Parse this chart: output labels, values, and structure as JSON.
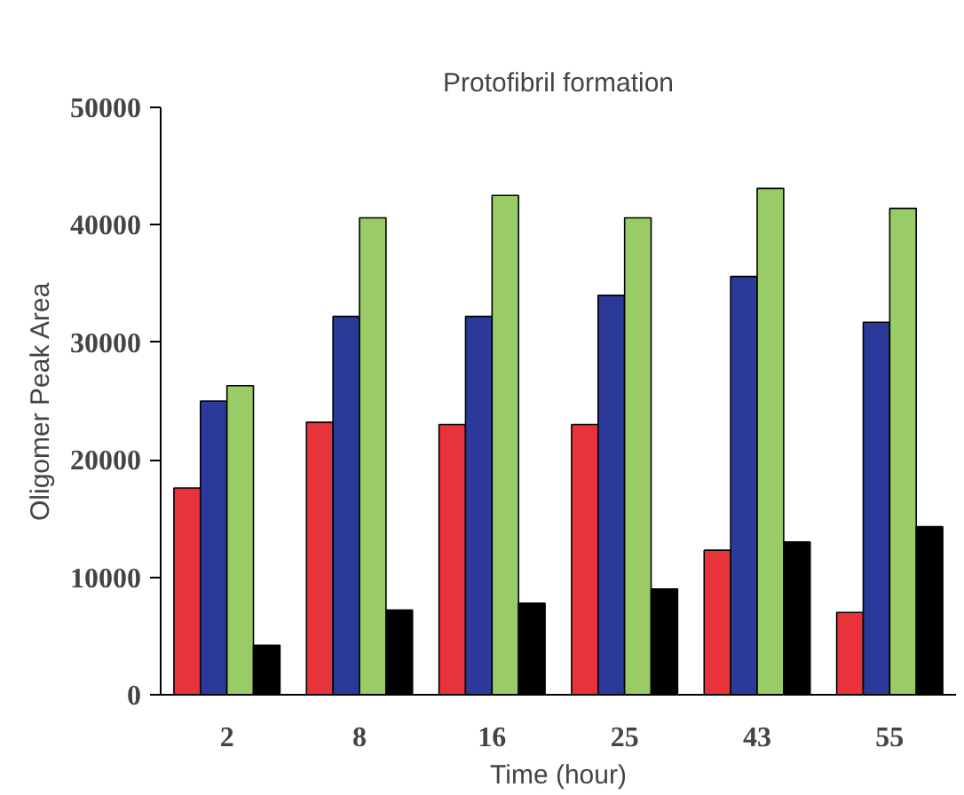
{
  "chart_data": {
    "type": "bar",
    "title": "Protofibril formation",
    "xlabel": "Time (hour)",
    "ylabel": "Oligomer Peak Area",
    "categories": [
      "2",
      "8",
      "16",
      "25",
      "43",
      "55"
    ],
    "series": [
      {
        "color": "#e8333a",
        "values": [
          17600,
          23200,
          23000,
          23000,
          12300,
          7000
        ]
      },
      {
        "color": "#2b3a9a",
        "values": [
          25000,
          32200,
          32200,
          34000,
          35600,
          31700
        ]
      },
      {
        "color": "#99cc66",
        "values": [
          26300,
          40600,
          42500,
          40600,
          43100,
          41400
        ]
      },
      {
        "color": "#000000",
        "values": [
          4200,
          7200,
          7800,
          9000,
          13000,
          14300
        ]
      }
    ],
    "ylim": [
      0,
      50000
    ],
    "yticks": [
      0,
      10000,
      20000,
      30000,
      40000,
      50000
    ],
    "grid": false
  }
}
